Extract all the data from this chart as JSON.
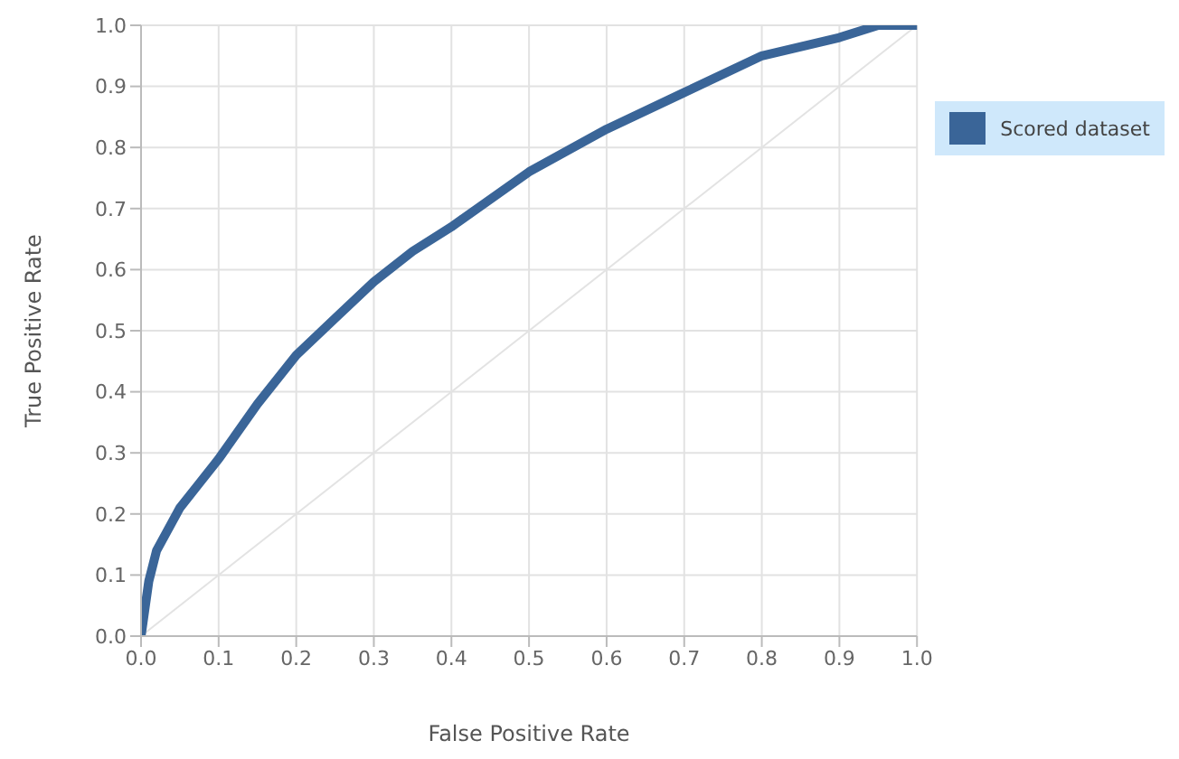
{
  "chart_data": {
    "type": "line",
    "xlabel": "False Positive Rate",
    "ylabel": "True Positive Rate",
    "xlim": [
      0,
      1
    ],
    "ylim": [
      0,
      1
    ],
    "xticks": [
      {
        "value": 0,
        "label": "0.0"
      },
      {
        "value": 0.1,
        "label": "0.1"
      },
      {
        "value": 0.2,
        "label": "0.2"
      },
      {
        "value": 0.3,
        "label": "0.3"
      },
      {
        "value": 0.4,
        "label": "0.4"
      },
      {
        "value": 0.5,
        "label": "0.5"
      },
      {
        "value": 0.6,
        "label": "0.6"
      },
      {
        "value": 0.7,
        "label": "0.7"
      },
      {
        "value": 0.8,
        "label": "0.8"
      },
      {
        "value": 0.9,
        "label": "0.9"
      },
      {
        "value": 1,
        "label": "1.0"
      }
    ],
    "yticks": [
      {
        "value": 0,
        "label": "0.0"
      },
      {
        "value": 0.1,
        "label": "0.1"
      },
      {
        "value": 0.2,
        "label": "0.2"
      },
      {
        "value": 0.3,
        "label": "0.3"
      },
      {
        "value": 0.4,
        "label": "0.4"
      },
      {
        "value": 0.5,
        "label": "0.5"
      },
      {
        "value": 0.6,
        "label": "0.6"
      },
      {
        "value": 0.7,
        "label": "0.7"
      },
      {
        "value": 0.8,
        "label": "0.8"
      },
      {
        "value": 0.9,
        "label": "0.9"
      },
      {
        "value": 1,
        "label": "1.0"
      }
    ],
    "grid": true,
    "legend": "top right",
    "series": [
      {
        "name": "Scored dataset",
        "color": "#3a6598",
        "x": [
          0,
          0.01,
          0.02,
          0.05,
          0.075,
          0.1,
          0.15,
          0.2,
          0.25,
          0.3,
          0.35,
          0.4,
          0.5,
          0.6,
          0.7,
          0.8,
          0.9,
          0.95,
          1
        ],
        "values": [
          0,
          0.09,
          0.14,
          0.21,
          0.25,
          0.29,
          0.38,
          0.46,
          0.52,
          0.58,
          0.63,
          0.67,
          0.76,
          0.83,
          0.89,
          0.95,
          0.98,
          1,
          1
        ]
      },
      {
        "color": "#e3e3e3",
        "x": [
          0,
          1
        ],
        "values": [
          0,
          1
        ]
      }
    ]
  }
}
